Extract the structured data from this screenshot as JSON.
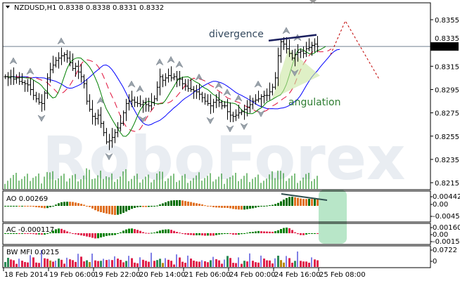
{
  "header": {
    "symbol": "NZDUSD,H1",
    "ohlc": "0.8338 0.8338 0.8331 0.8332"
  },
  "watermark": "RoboForex",
  "annotations": {
    "divergence": "divergence",
    "angulation": "angulation"
  },
  "chart_data": {
    "type": "ohlc",
    "title": "NZDUSD,H1",
    "close": [
      0.8306,
      0.8305,
      0.8306,
      0.8304,
      0.8305,
      0.8302,
      0.8301,
      0.83,
      0.8299,
      0.8295,
      0.829,
      0.8287,
      0.8284,
      0.8283,
      0.8292,
      0.8305,
      0.8312,
      0.8316,
      0.832,
      0.8322,
      0.8324,
      0.8325,
      0.8322,
      0.8318,
      0.8313,
      0.8315,
      0.831,
      0.8306,
      0.83,
      0.8285,
      0.8278,
      0.8272,
      0.827,
      0.8273,
      0.8266,
      0.8258,
      0.825,
      0.8251,
      0.8254,
      0.8258,
      0.8262,
      0.8266,
      0.8275,
      0.8283,
      0.8285,
      0.8286,
      0.8284,
      0.8283,
      0.8282,
      0.8284,
      0.8282,
      0.8281,
      0.8284,
      0.8287,
      0.8297,
      0.8306,
      0.8303,
      0.8305,
      0.8307,
      0.8305,
      0.8306,
      0.8304,
      0.8304,
      0.83,
      0.8298,
      0.8296,
      0.8295,
      0.8294,
      0.8293,
      0.8291,
      0.8288,
      0.8285,
      0.8283,
      0.8281,
      0.8284,
      0.8286,
      0.8284,
      0.8281,
      0.8281,
      0.8276,
      0.8273,
      0.8272,
      0.8273,
      0.8275,
      0.8276,
      0.8278,
      0.828,
      0.8282,
      0.8285,
      0.8286,
      0.8287,
      0.8289,
      0.829,
      0.829,
      0.8293,
      0.8297,
      0.8305,
      0.8324,
      0.8336,
      0.8334,
      0.833,
      0.8326,
      0.8322,
      0.8325,
      0.8327,
      0.8328,
      0.8326,
      0.833,
      0.8331,
      0.8333,
      0.8334,
      0.8332
    ],
    "ylim": [
      0.8209,
      0.83695
    ],
    "yticks": [
      "0.8355",
      "0.8335",
      "0.8315",
      "0.8295",
      "0.8275",
      "0.8255",
      "0.8235",
      "0.8215"
    ],
    "current_price": "0.8332",
    "xticks": [
      {
        "bar": 0,
        "label": "18 Feb 2014"
      },
      {
        "bar": 16,
        "label": "19 Feb 06:00"
      },
      {
        "bar": 32,
        "label": "19 Feb 22:00"
      },
      {
        "bar": 48,
        "label": "20 Feb 14:00"
      },
      {
        "bar": 64,
        "label": "21 Feb 06:00"
      },
      {
        "bar": 80,
        "label": "24 Feb 00:00"
      },
      {
        "bar": 96,
        "label": "24 Feb 16:00"
      },
      {
        "bar": 112,
        "label": "25 Feb 08:00"
      }
    ],
    "drawings": {
      "divergence_line": [
        [
          93.75,
          0.8337
        ],
        [
          110.75,
          0.8342
        ]
      ],
      "angulation_triangle": [
        [
          95,
          0.8287
        ],
        [
          100.75,
          0.833
        ],
        [
          112,
          0.8307
        ]
      ],
      "forecast": [
        [
          115.75,
          0.8325
        ],
        [
          121,
          0.8354
        ],
        [
          133,
          0.8304
        ]
      ]
    },
    "indicators": {
      "ao": {
        "label": "AO 0.00269",
        "ticks": [
          "0.00442",
          "0.00",
          "-0.00454"
        ]
      },
      "ac": {
        "label": "AC -0.000117",
        "ticks": [
          "0.001608",
          "0.00",
          "-0.00151"
        ]
      },
      "mfi": {
        "label": "BW MFI 0.0215",
        "ticks": [
          "0.0722",
          "0"
        ]
      }
    },
    "colors": {
      "jaw": "#0000ff",
      "teeth": "#e0103a",
      "lips": "#008000",
      "ao_up": "#007000",
      "ao_down": "#e07020",
      "ac_up": "#008000",
      "ac_down": "#e0204a",
      "mfi_green": "#2e8b57",
      "mfi_fade": "#b8860b",
      "mfi_fake": "#0000cc",
      "mfi_squat": "#e0204a",
      "volume": "#008000",
      "forecast": "#c00000",
      "highlight": "#b8e6c8"
    }
  }
}
